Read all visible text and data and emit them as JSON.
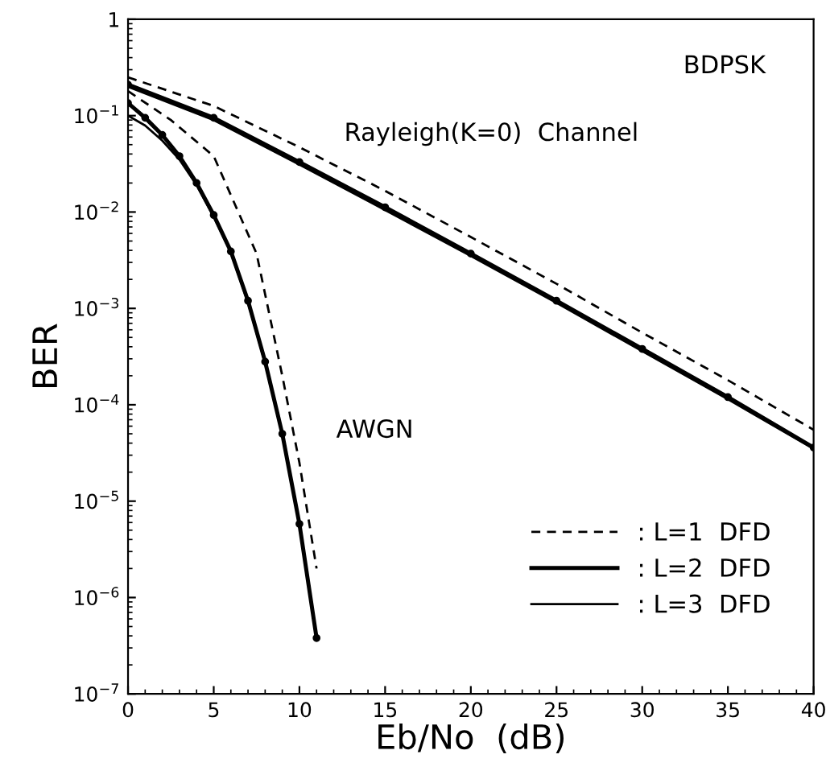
{
  "chart_data": {
    "type": "line",
    "xlabel": "Eb/No  (dB)",
    "ylabel": "BER",
    "log": "y",
    "xlim": [
      0,
      40
    ],
    "xticks": [
      0,
      5,
      10,
      15,
      20,
      25,
      30,
      35,
      40
    ],
    "ylim": [
      1e-07,
      1
    ],
    "yticks": [
      {
        "value": 1e-07,
        "label": "10$^{−7}$"
      },
      {
        "value": 1e-06,
        "label": "10$^{−6}$"
      },
      {
        "value": 1e-05,
        "label": "10$^{−5}$"
      },
      {
        "value": 0.0001,
        "label": "10$^{−4}$"
      },
      {
        "value": 0.001,
        "label": "10$^{−3}$"
      },
      {
        "value": 0.01,
        "label": "10$^{−2}$"
      },
      {
        "value": 0.1,
        "label": "10$^{−1}$"
      },
      1
    ],
    "grid": false,
    "legend": "bottom right",
    "annotations": [
      "BDPSK",
      "Rayleigh(K=0)  Channel",
      "AWGN"
    ],
    "series": [
      {
        "name": ": L=1  DFD",
        "color": "#000000",
        "line_style": "dashed",
        "marker": "none",
        "x": [
          0,
          5,
          10,
          15,
          20,
          25,
          30,
          35,
          40
        ],
        "values": [
          0.25,
          0.126,
          0.047,
          0.0166,
          0.0055,
          0.0018,
          0.00056,
          0.00018,
          5.5e-05
        ]
      },
      {
        "name": ": L=2  DFD",
        "color": "#000000",
        "line_style": "solid",
        "marker": "circle",
        "x": [
          0,
          5,
          10,
          15,
          20,
          25,
          30,
          35,
          40
        ],
        "values": [
          0.21,
          0.095,
          0.033,
          0.0112,
          0.0037,
          0.0012,
          0.00038,
          0.00012,
          3.6e-05
        ]
      },
      {
        "name": ": L=3  DFD",
        "color": "#000000",
        "line_style": "solid",
        "marker": "none",
        "x": [
          0,
          5,
          10,
          15,
          20,
          25,
          30,
          35,
          40
        ],
        "values": [
          0.2,
          0.09,
          0.031,
          0.0105,
          0.0035,
          0.00114,
          0.00036,
          0.000114,
          3.5e-05
        ]
      },
      {
        "color": "#000000",
        "line_style": "dashed",
        "marker": "none",
        "x": [
          0,
          2.5,
          5,
          7.5,
          9,
          10,
          11
        ],
        "values": [
          0.18,
          0.09,
          0.038,
          0.0037,
          0.0002,
          2.5e-05,
          2e-06
        ]
      },
      {
        "color": "#000000",
        "line_style": "solid",
        "marker": "circle",
        "x": [
          0,
          1,
          2,
          3,
          4,
          5,
          6,
          7,
          8,
          9,
          10,
          11
        ],
        "values": [
          0.135,
          0.095,
          0.063,
          0.038,
          0.02,
          0.0093,
          0.0039,
          0.0012,
          0.00028,
          5e-05,
          5.8e-06,
          3.8e-07
        ]
      },
      {
        "color": "#000000",
        "line_style": "solid",
        "marker": "none",
        "x": [
          0,
          1,
          2,
          3,
          4,
          5,
          6,
          7,
          8,
          9,
          10,
          11
        ],
        "values": [
          0.1,
          0.079,
          0.055,
          0.035,
          0.019,
          0.0089,
          0.0038,
          0.00115,
          0.00027,
          5e-05,
          5.6e-06,
          3.8e-07
        ]
      }
    ]
  }
}
